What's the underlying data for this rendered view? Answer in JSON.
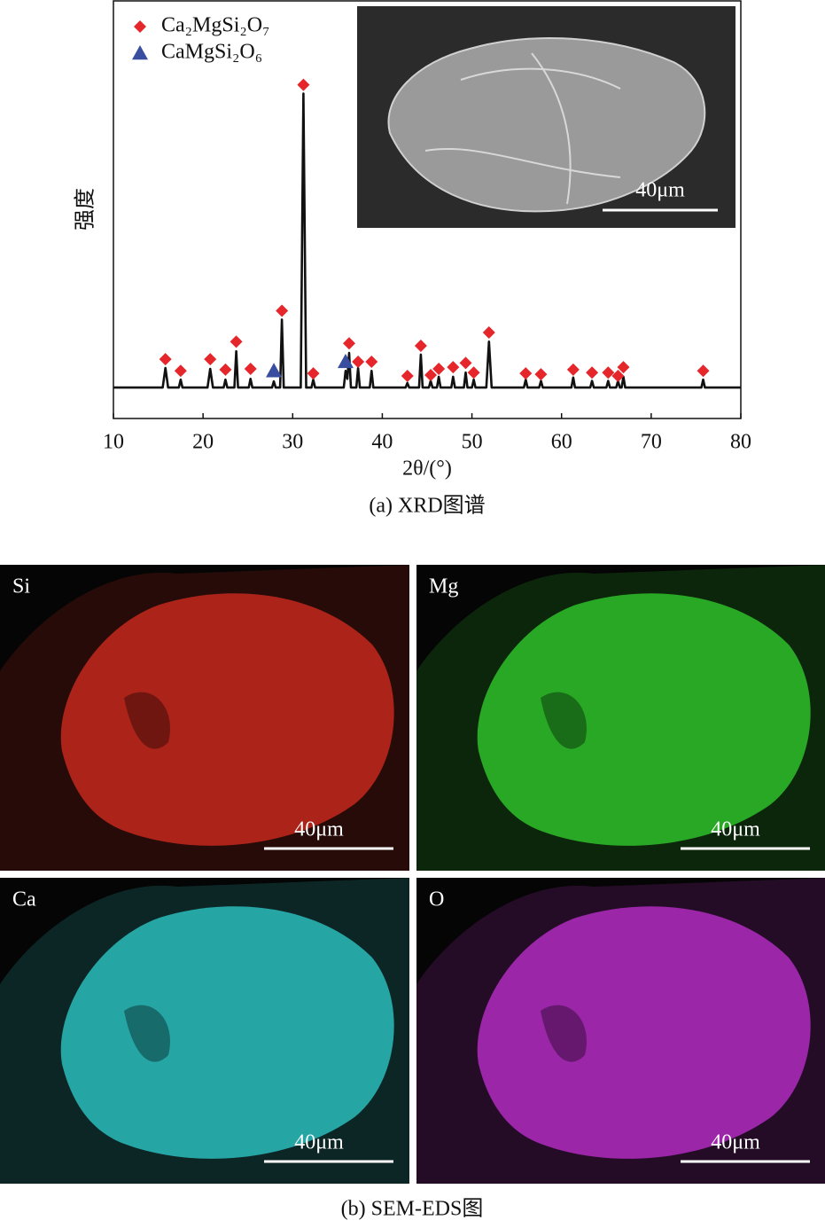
{
  "chart_data": {
    "type": "line",
    "x_label": "2θ/(°)",
    "y_label": "强度",
    "xlim": [
      10,
      80
    ],
    "ylim": [
      0,
      100
    ],
    "xticks": [
      10,
      20,
      30,
      40,
      50,
      60,
      70,
      80
    ],
    "pattern": {
      "color": "#111111",
      "x": [
        10,
        15.5,
        15.8,
        16.1,
        17.3,
        17.5,
        17.7,
        20.5,
        20.8,
        21.1,
        22.3,
        22.5,
        22.7,
        23.5,
        23.7,
        23.9,
        25.1,
        25.3,
        25.5,
        27.7,
        27.9,
        28.1,
        28.6,
        28.8,
        29.0,
        30.9,
        31.2,
        31.5,
        32.1,
        32.3,
        32.5,
        35.7,
        35.9,
        36.1,
        36.3,
        36.5,
        37.1,
        37.3,
        37.5,
        38.6,
        38.8,
        39.0,
        42.6,
        42.8,
        43.0,
        44.1,
        44.3,
        44.5,
        45.2,
        45.4,
        45.6,
        46.1,
        46.3,
        46.5,
        47.7,
        47.9,
        48.1,
        49.1,
        49.3,
        49.5,
        50.0,
        50.2,
        50.4,
        51.6,
        51.9,
        52.2,
        55.8,
        56.0,
        56.2,
        57.5,
        57.7,
        57.9,
        61.1,
        61.3,
        61.5,
        63.2,
        63.4,
        63.6,
        65.0,
        65.2,
        65.4,
        66.1,
        66.3,
        66.5,
        66.7,
        66.9,
        67.1,
        75.6,
        75.8,
        76.0,
        80
      ],
      "values": [
        7.4,
        7.4,
        12.1,
        7.4,
        7.4,
        9.3,
        7.4,
        7.4,
        11.9,
        7.4,
        7.4,
        9.3,
        7.4,
        7.4,
        16.1,
        7.4,
        7.4,
        9.5,
        7.4,
        7.4,
        8.9,
        7.4,
        7.4,
        23.7,
        7.4,
        7.4,
        77.8,
        7.4,
        7.4,
        9.3,
        7.4,
        7.4,
        11.4,
        9.5,
        15.7,
        7.4,
        7.4,
        12.1,
        7.4,
        7.4,
        11.4,
        7.4,
        7.4,
        8.5,
        7.4,
        7.4,
        15.3,
        7.4,
        7.4,
        9.0,
        7.4,
        7.4,
        10.0,
        7.4,
        7.4,
        10.0,
        7.4,
        7.4,
        11.0,
        7.4,
        7.4,
        9.3,
        7.4,
        7.4,
        18.4,
        7.4,
        7.4,
        9.3,
        7.4,
        7.4,
        9.0,
        7.4,
        7.4,
        9.8,
        7.4,
        7.4,
        9.0,
        7.4,
        7.4,
        9.0,
        7.4,
        7.4,
        9.0,
        7.4,
        7.4,
        10.0,
        7.4,
        7.4,
        9.3,
        7.4,
        7.4
      ]
    },
    "series": [
      {
        "name": "Ca₂MgSi₂O₇",
        "color": "#e5262b",
        "marker": "diamond",
        "x": [
          15.8,
          17.5,
          20.8,
          22.5,
          23.7,
          25.3,
          28.8,
          31.2,
          32.3,
          36.3,
          37.3,
          38.8,
          42.8,
          44.3,
          45.4,
          46.3,
          47.9,
          49.3,
          50.2,
          51.9,
          56.0,
          57.7,
          61.3,
          63.4,
          65.2,
          66.3,
          66.9,
          75.8
        ],
        "values": [
          14.2,
          11.4,
          14.2,
          11.7,
          18.4,
          11.9,
          25.8,
          79.9,
          10.8,
          18.0,
          13.6,
          13.6,
          10.2,
          17.4,
          10.4,
          11.9,
          12.3,
          13.3,
          11.0,
          20.6,
          10.8,
          10.6,
          11.7,
          11.0,
          11.0,
          10.2,
          12.3,
          11.4
        ]
      },
      {
        "name": "CaMgSi₂O₆",
        "color": "#3a4ea0",
        "marker": "triangle",
        "x": [
          27.9,
          35.9
        ],
        "values": [
          11.4,
          13.6
        ]
      }
    ]
  },
  "inset": {
    "scale_label": "40μm"
  },
  "caption_a": "(a) XRD图谱",
  "eds": {
    "panels": [
      {
        "label": "Si",
        "color": "#c4281c",
        "scale_label": "40μm"
      },
      {
        "label": "Mg",
        "color": "#2fbf2a",
        "scale_label": "40μm"
      },
      {
        "label": "Ca",
        "color": "#2bbcbc",
        "scale_label": "40μm"
      },
      {
        "label": "O",
        "color": "#b02cc0",
        "scale_label": "40μm"
      }
    ]
  },
  "caption_b": "(b) SEM-EDS图"
}
